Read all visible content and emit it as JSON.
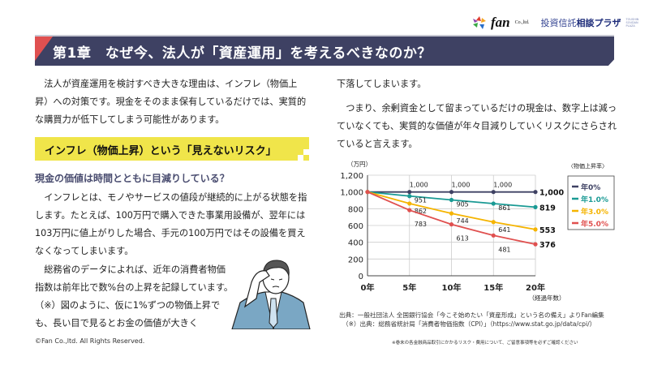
{
  "logo": {
    "brand": "fan",
    "suffix": "Co.,ltd.",
    "plaza_a": "投資信託",
    "plaza_b": "相談プラザ",
    "plaza_small": "TOUSHIN SOUDAN PLAZA"
  },
  "header": {
    "title": "第1章　なぜ今、法人が「資産運用」を考えるべきなのか？"
  },
  "left": {
    "p1": "　法人が資産運用を検討すべき大きな理由は、インフレ（物価上昇）への対策です。現金をそのまま保有しているだけでは、実質的な購買力が低下してしまう可能性があります。",
    "banner": "インフレ（物価上昇）という「見えないリスク」",
    "subheading": "現金の価値は時間とともに目減りしている？",
    "p2": "　インフレとは、モノやサービスの値段が継続的に上がる状態を指します。たとえば、100万円で購入できた事業用設備が、翌年には103万円に値上がりした場合、手元の100万円ではその設備を買えなくなってしまいます。",
    "p3": "　総務省のデータによれば、近年の消費者物価指数は前年比で数%台の上昇を記録しています。（※）図のように、仮に1%ずつの物価上昇でも、長い目で見るとお金の価値が大きく"
  },
  "right": {
    "p4": "下落してしまいます。",
    "p5": "　つまり、余剰資金として留まっているだけの現金は、数字上は減っていなくても、実質的な価値が年々目減りしていくリスクにさらされていると言えます。"
  },
  "chart_data": {
    "type": "line",
    "ylabel": "（万円）",
    "xlabel": "（経過年数）",
    "x": [
      0,
      5,
      10,
      15,
      20
    ],
    "categories": [
      "0年",
      "5年",
      "10年",
      "15年",
      "20年"
    ],
    "ylim": [
      0,
      1200
    ],
    "yticks": [
      "0",
      "200",
      "400",
      "600",
      "800",
      "1,000",
      "1,200"
    ],
    "grid": true,
    "legend_title": "〈物価上昇率〉",
    "legend_position": "right",
    "series": [
      {
        "name": "年0%",
        "color": "#3e4163",
        "values": [
          1000,
          1000,
          1000,
          1000,
          1000
        ],
        "labels": [
          "",
          "1,000",
          "1,000",
          "1,000",
          "1,000"
        ]
      },
      {
        "name": "年1.0%",
        "color": "#1a9a94",
        "values": [
          1000,
          951,
          905,
          861,
          819
        ],
        "labels": [
          "",
          "951",
          "905",
          "861",
          "819"
        ]
      },
      {
        "name": "年3.0%",
        "color": "#f5b400",
        "values": [
          1000,
          862,
          744,
          641,
          553
        ],
        "labels": [
          "",
          "862",
          "744",
          "641",
          "553"
        ]
      },
      {
        "name": "年5.0%",
        "color": "#e0504f",
        "values": [
          1000,
          783,
          613,
          481,
          376
        ],
        "labels": [
          "",
          "783",
          "613",
          "481",
          "376"
        ]
      }
    ]
  },
  "source": {
    "line1": "出典：一般社団法人 全国銀行協会「今こそ始めたい「資産形成」という名の備え」よりFan編集",
    "line2": "（※）出典：総務省統計局「消費者物価指数（CPI）」（https://www.stat.go.jp/data/cpi/）"
  },
  "footer": {
    "copyright": "©Fan Co.,ltd. All Rights Reserved.",
    "note": "※巻末の各金融商品取引にかかるリスク・費用について、ご留意事項等を必ずご確認ください"
  }
}
